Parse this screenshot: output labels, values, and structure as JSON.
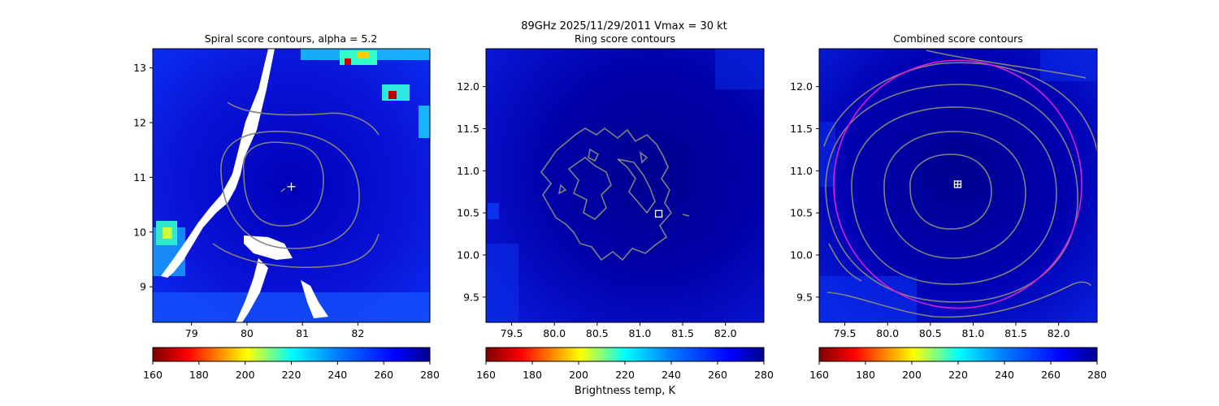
{
  "suptitle": "89GHz  2025/11/29/2011    Vmax = 30 kt",
  "colorbar_label": "Brightness temp, K",
  "colors": {
    "contour": "#808080",
    "circle": "#d51fd5",
    "marker": "#ffffff"
  },
  "chart_data": [
    {
      "type": "heatmap",
      "title": "Spiral score contours, alpha =  5.2",
      "xlim": [
        78.3,
        83.3
      ],
      "ylim": [
        8.35,
        13.35
      ],
      "xticks": [
        "79",
        "80",
        "81",
        "82"
      ],
      "xtick_values": [
        79,
        80,
        81,
        82
      ],
      "yticks": [
        "9",
        "10",
        "11",
        "12",
        "13"
      ],
      "ytick_values": [
        9,
        10,
        11,
        12,
        13
      ],
      "center": [
        80.8,
        10.83
      ],
      "center_marker": "plus",
      "colorbar": {
        "range": [
          160,
          280
        ],
        "ticks": [
          "160",
          "180",
          "200",
          "220",
          "240",
          "260",
          "280"
        ],
        "colormap": "jet_r"
      },
      "grid": false
    },
    {
      "type": "heatmap",
      "title": "Ring score contours",
      "xlim": [
        79.2,
        82.45
      ],
      "ylim": [
        9.2,
        12.45
      ],
      "xticks": [
        "79.5",
        "80.0",
        "80.5",
        "81.0",
        "81.5",
        "82.0"
      ],
      "xtick_values": [
        79.5,
        80.0,
        80.5,
        81.0,
        81.5,
        82.0
      ],
      "yticks": [
        "9.5",
        "10.0",
        "10.5",
        "11.0",
        "11.5",
        "12.0"
      ],
      "ytick_values": [
        9.5,
        10.0,
        10.5,
        11.0,
        11.5,
        12.0
      ],
      "center": [
        81.22,
        10.49
      ],
      "center_marker": "square",
      "colorbar": {
        "range": [
          160,
          280
        ],
        "ticks": [
          "160",
          "180",
          "200",
          "220",
          "240",
          "260",
          "280"
        ],
        "colormap": "jet_r"
      },
      "grid": false
    },
    {
      "type": "heatmap",
      "title": "Combined score contours",
      "xlim": [
        79.2,
        82.45
      ],
      "ylim": [
        9.2,
        12.45
      ],
      "xticks": [
        "79.5",
        "80.0",
        "80.5",
        "81.0",
        "81.5",
        "82.0"
      ],
      "xtick_values": [
        79.5,
        80.0,
        80.5,
        81.0,
        81.5,
        82.0
      ],
      "yticks": [
        "9.5",
        "10.0",
        "10.5",
        "11.0",
        "11.5",
        "12.0"
      ],
      "ytick_values": [
        9.5,
        10.0,
        10.5,
        11.0,
        11.5,
        12.0
      ],
      "center": [
        80.82,
        10.84
      ],
      "center_marker": "square-plus",
      "circle": {
        "center": [
          80.82,
          10.84
        ],
        "radius": 1.45
      },
      "colorbar": {
        "range": [
          160,
          280
        ],
        "ticks": [
          "160",
          "180",
          "200",
          "220",
          "240",
          "260",
          "280"
        ],
        "colormap": "jet_r"
      },
      "grid": false
    }
  ]
}
